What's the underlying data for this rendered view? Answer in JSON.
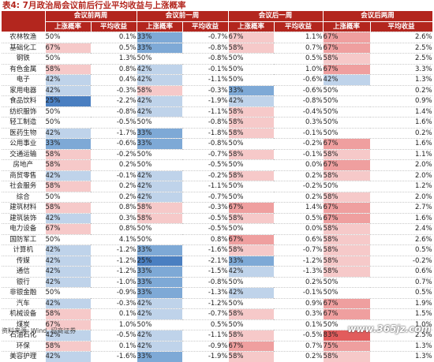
{
  "title": "表4: 7月政治局会议前后行业平均收益与上涨概率",
  "headers": {
    "groups": [
      "会议前两周",
      "会议前一周",
      "会议后一周",
      "会议后两周"
    ],
    "sub": [
      "上涨概率",
      "平均收益"
    ]
  },
  "colors": {
    "header": "#b3261e",
    "up_strong": "#4a7fc1",
    "up_mid": "#7ea9d6",
    "up_light": "#bfd3ea",
    "down_light": "#f6c9c9",
    "down_mid": "#ef9f9f",
    "down_strong": "#e25c5c"
  },
  "rows": [
    {
      "industry": "农林牧渔",
      "cells": [
        {
          "v": "50%"
        },
        {
          "v": "0.1%"
        },
        {
          "v": "33%",
          "c": "mid"
        },
        {
          "v": "-0.7%"
        },
        {
          "v": "67%",
          "c": "l"
        },
        {
          "v": "1.1%"
        },
        {
          "v": "67%",
          "c": "m"
        },
        {
          "v": "2.6%"
        }
      ]
    },
    {
      "industry": "基础化工",
      "cells": [
        {
          "v": "67%",
          "c": "l"
        },
        {
          "v": "0.5%"
        },
        {
          "v": "33%",
          "c": "mid"
        },
        {
          "v": "-0.8%"
        },
        {
          "v": "58%",
          "c": "l"
        },
        {
          "v": "0.7%"
        },
        {
          "v": "67%",
          "c": "m"
        },
        {
          "v": "2.5%"
        }
      ]
    },
    {
      "industry": "钢铁",
      "cells": [
        {
          "v": "50%"
        },
        {
          "v": "1.3%"
        },
        {
          "v": "50%"
        },
        {
          "v": "-0.8%"
        },
        {
          "v": "50%"
        },
        {
          "v": "0.5%"
        },
        {
          "v": "58%",
          "c": "l"
        },
        {
          "v": "2.5%"
        }
      ]
    },
    {
      "industry": "有色金属",
      "cells": [
        {
          "v": "58%",
          "c": "l"
        },
        {
          "v": "0.8%"
        },
        {
          "v": "42%",
          "c": "lt"
        },
        {
          "v": "-0.1%"
        },
        {
          "v": "50%"
        },
        {
          "v": "1.0%"
        },
        {
          "v": "67%",
          "c": "m"
        },
        {
          "v": "3.3%"
        }
      ]
    },
    {
      "industry": "电子",
      "cells": [
        {
          "v": "42%",
          "c": "lt"
        },
        {
          "v": "0.4%"
        },
        {
          "v": "42%",
          "c": "lt"
        },
        {
          "v": "-1.1%"
        },
        {
          "v": "50%"
        },
        {
          "v": "-0.6%"
        },
        {
          "v": "42%",
          "c": "lt"
        },
        {
          "v": "1.3%"
        }
      ]
    },
    {
      "industry": "家用电器",
      "cells": [
        {
          "v": "42%",
          "c": "lt"
        },
        {
          "v": "-0.3%"
        },
        {
          "v": "58%",
          "c": "l"
        },
        {
          "v": "-0.3%"
        },
        {
          "v": "33%",
          "c": "mid"
        },
        {
          "v": "-0.6%"
        },
        {
          "v": "50%"
        },
        {
          "v": "0.2%"
        }
      ]
    },
    {
      "industry": "食品饮料",
      "cells": [
        {
          "v": "25%",
          "c": "s"
        },
        {
          "v": "-2.2%"
        },
        {
          "v": "42%",
          "c": "lt"
        },
        {
          "v": "-1.9%"
        },
        {
          "v": "42%",
          "c": "lt"
        },
        {
          "v": "-0.8%"
        },
        {
          "v": "50%"
        },
        {
          "v": "0.9%"
        }
      ]
    },
    {
      "industry": "纺织服饰",
      "cells": [
        {
          "v": "50%"
        },
        {
          "v": "-0.8%"
        },
        {
          "v": "42%",
          "c": "lt"
        },
        {
          "v": "-1.1%"
        },
        {
          "v": "58%",
          "c": "l"
        },
        {
          "v": "-0.4%"
        },
        {
          "v": "50%"
        },
        {
          "v": "1.4%"
        }
      ]
    },
    {
      "industry": "轻工制造",
      "cells": [
        {
          "v": "50%"
        },
        {
          "v": "-0.5%"
        },
        {
          "v": "50%"
        },
        {
          "v": "-0.8%"
        },
        {
          "v": "58%",
          "c": "l"
        },
        {
          "v": "0.3%"
        },
        {
          "v": "50%"
        },
        {
          "v": "1.6%"
        }
      ]
    },
    {
      "industry": "医药生物",
      "cells": [
        {
          "v": "42%",
          "c": "lt"
        },
        {
          "v": "-1.7%"
        },
        {
          "v": "33%",
          "c": "mid"
        },
        {
          "v": "-1.8%"
        },
        {
          "v": "58%",
          "c": "l"
        },
        {
          "v": "-0.1%"
        },
        {
          "v": "50%"
        },
        {
          "v": "0.2%"
        }
      ]
    },
    {
      "industry": "公用事业",
      "cells": [
        {
          "v": "33%",
          "c": "mid"
        },
        {
          "v": "-0.6%"
        },
        {
          "v": "33%",
          "c": "mid"
        },
        {
          "v": "-0.8%"
        },
        {
          "v": "50%"
        },
        {
          "v": "-0.2%"
        },
        {
          "v": "67%",
          "c": "m"
        },
        {
          "v": "1.6%"
        }
      ]
    },
    {
      "industry": "交通运输",
      "cells": [
        {
          "v": "58%",
          "c": "l"
        },
        {
          "v": "-0.2%"
        },
        {
          "v": "50%"
        },
        {
          "v": "-0.7%"
        },
        {
          "v": "58%",
          "c": "l"
        },
        {
          "v": "-0.1%"
        },
        {
          "v": "58%",
          "c": "l"
        },
        {
          "v": "1.1%"
        }
      ]
    },
    {
      "industry": "房地产",
      "cells": [
        {
          "v": "58%",
          "c": "l"
        },
        {
          "v": "0.2%"
        },
        {
          "v": "50%"
        },
        {
          "v": "-0.5%"
        },
        {
          "v": "50%"
        },
        {
          "v": "0.0%"
        },
        {
          "v": "67%",
          "c": "m"
        },
        {
          "v": "2.0%"
        }
      ]
    },
    {
      "industry": "商贸零售",
      "cells": [
        {
          "v": "42%",
          "c": "lt"
        },
        {
          "v": "-0.1%"
        },
        {
          "v": "42%",
          "c": "lt"
        },
        {
          "v": "-0.2%"
        },
        {
          "v": "58%",
          "c": "l"
        },
        {
          "v": "0.2%"
        },
        {
          "v": "58%",
          "c": "l"
        },
        {
          "v": "2.0%"
        }
      ]
    },
    {
      "industry": "社会服务",
      "cells": [
        {
          "v": "58%",
          "c": "l"
        },
        {
          "v": "0.2%"
        },
        {
          "v": "42%",
          "c": "lt"
        },
        {
          "v": "-1.1%"
        },
        {
          "v": "50%"
        },
        {
          "v": "-0.2%"
        },
        {
          "v": "50%"
        },
        {
          "v": "1.2%"
        }
      ]
    },
    {
      "industry": "综合",
      "cells": [
        {
          "v": "50%"
        },
        {
          "v": "0.2%"
        },
        {
          "v": "42%",
          "c": "lt"
        },
        {
          "v": "-0.7%"
        },
        {
          "v": "50%"
        },
        {
          "v": "0.2%"
        },
        {
          "v": "58%",
          "c": "l"
        },
        {
          "v": "2.0%"
        }
      ]
    },
    {
      "industry": "建筑材料",
      "cells": [
        {
          "v": "58%",
          "c": "l"
        },
        {
          "v": "0.8%"
        },
        {
          "v": "58%",
          "c": "l"
        },
        {
          "v": "-0.3%"
        },
        {
          "v": "67%",
          "c": "m"
        },
        {
          "v": "1.4%"
        },
        {
          "v": "67%",
          "c": "m"
        },
        {
          "v": "2.7%"
        }
      ]
    },
    {
      "industry": "建筑装饰",
      "cells": [
        {
          "v": "42%",
          "c": "lt"
        },
        {
          "v": "0.3%"
        },
        {
          "v": "58%",
          "c": "l"
        },
        {
          "v": "-0.5%"
        },
        {
          "v": "58%",
          "c": "l"
        },
        {
          "v": "0.5%"
        },
        {
          "v": "67%",
          "c": "m"
        },
        {
          "v": "1.6%"
        }
      ]
    },
    {
      "industry": "电力设备",
      "cells": [
        {
          "v": "67%",
          "c": "l"
        },
        {
          "v": "0.8%"
        },
        {
          "v": "50%"
        },
        {
          "v": "-0.5%"
        },
        {
          "v": "50%"
        },
        {
          "v": "0.0%"
        },
        {
          "v": "58%",
          "c": "l"
        },
        {
          "v": "2.4%"
        }
      ]
    },
    {
      "industry": "国防军工",
      "cells": [
        {
          "v": "50%"
        },
        {
          "v": "4.1%"
        },
        {
          "v": "50%"
        },
        {
          "v": "0.8%"
        },
        {
          "v": "67%",
          "c": "m"
        },
        {
          "v": "0.6%"
        },
        {
          "v": "58%",
          "c": "l"
        },
        {
          "v": "2.6%"
        }
      ]
    },
    {
      "industry": "计算机",
      "cells": [
        {
          "v": "42%",
          "c": "lt"
        },
        {
          "v": "-1.2%"
        },
        {
          "v": "33%",
          "c": "mid"
        },
        {
          "v": "-1.6%"
        },
        {
          "v": "58%",
          "c": "l"
        },
        {
          "v": "-0.7%"
        },
        {
          "v": "58%",
          "c": "l"
        },
        {
          "v": "0.5%"
        }
      ]
    },
    {
      "industry": "传媒",
      "cells": [
        {
          "v": "42%",
          "c": "lt"
        },
        {
          "v": "-1.2%"
        },
        {
          "v": "25%",
          "c": "s"
        },
        {
          "v": "-2.1%"
        },
        {
          "v": "33%",
          "c": "mid"
        },
        {
          "v": "-1.2%"
        },
        {
          "v": "58%",
          "c": "l"
        },
        {
          "v": "-0.2%"
        }
      ]
    },
    {
      "industry": "通信",
      "cells": [
        {
          "v": "42%",
          "c": "lt"
        },
        {
          "v": "-1.2%"
        },
        {
          "v": "33%",
          "c": "mid"
        },
        {
          "v": "-1.5%"
        },
        {
          "v": "42%",
          "c": "lt"
        },
        {
          "v": "-1.3%"
        },
        {
          "v": "58%",
          "c": "l"
        },
        {
          "v": "0.6%"
        }
      ]
    },
    {
      "industry": "银行",
      "cells": [
        {
          "v": "42%",
          "c": "lt"
        },
        {
          "v": "-1.0%"
        },
        {
          "v": "33%",
          "c": "mid"
        },
        {
          "v": "-0.8%"
        },
        {
          "v": "50%"
        },
        {
          "v": "0.2%"
        },
        {
          "v": "50%"
        },
        {
          "v": "0.7%"
        }
      ]
    },
    {
      "industry": "非银金融",
      "cells": [
        {
          "v": "50%"
        },
        {
          "v": "-0.9%"
        },
        {
          "v": "33%",
          "c": "mid"
        },
        {
          "v": "-1.3%"
        },
        {
          "v": "42%",
          "c": "lt"
        },
        {
          "v": "-0.1%"
        },
        {
          "v": "50%"
        },
        {
          "v": "0.5%"
        }
      ]
    },
    {
      "industry": "汽车",
      "cells": [
        {
          "v": "42%",
          "c": "lt"
        },
        {
          "v": "-0.3%"
        },
        {
          "v": "42%",
          "c": "lt"
        },
        {
          "v": "-1.2%"
        },
        {
          "v": "50%"
        },
        {
          "v": "0.9%"
        },
        {
          "v": "67%",
          "c": "m"
        },
        {
          "v": "1.9%"
        }
      ]
    },
    {
      "industry": "机械设备",
      "cells": [
        {
          "v": "58%",
          "c": "l"
        },
        {
          "v": "0.1%"
        },
        {
          "v": "42%",
          "c": "lt"
        },
        {
          "v": "-0.7%"
        },
        {
          "v": "58%",
          "c": "l"
        },
        {
          "v": "0.3%"
        },
        {
          "v": "67%",
          "c": "m"
        },
        {
          "v": "1.5%"
        }
      ]
    },
    {
      "industry": "煤炭",
      "cells": [
        {
          "v": "67%",
          "c": "l"
        },
        {
          "v": "1.0%"
        },
        {
          "v": "50%"
        },
        {
          "v": "0.5%"
        },
        {
          "v": "50%"
        },
        {
          "v": "0.1%"
        },
        {
          "v": "50%"
        },
        {
          "v": "1.0%"
        }
      ]
    },
    {
      "industry": "石油石化",
      "cells": [
        {
          "v": "42%",
          "c": "lt"
        },
        {
          "v": "-0.5%"
        },
        {
          "v": "42%",
          "c": "lt"
        },
        {
          "v": "-1.1%"
        },
        {
          "v": "58%",
          "c": "l"
        },
        {
          "v": "-0.5%"
        },
        {
          "v": "83%",
          "c": "s"
        },
        {
          "v": "2.5%"
        }
      ]
    },
    {
      "industry": "环保",
      "cells": [
        {
          "v": "58%",
          "c": "l"
        },
        {
          "v": "0.1%"
        },
        {
          "v": "42%",
          "c": "lt"
        },
        {
          "v": "-0.9%"
        },
        {
          "v": "67%",
          "c": "m"
        },
        {
          "v": "0.7%"
        },
        {
          "v": "75%",
          "c": "m"
        },
        {
          "v": "1.3%"
        }
      ]
    },
    {
      "industry": "美容护理",
      "cells": [
        {
          "v": "42%",
          "c": "lt"
        },
        {
          "v": "-1.6%"
        },
        {
          "v": "33%",
          "c": "mid"
        },
        {
          "v": "-1.9%"
        },
        {
          "v": "58%",
          "c": "l"
        },
        {
          "v": "0.2%"
        },
        {
          "v": "58%",
          "c": "l"
        },
        {
          "v": "1.3%"
        }
      ]
    }
  ],
  "source": "资料来源: Wind, 招商证券",
  "watermark": "www.365jz.com"
}
